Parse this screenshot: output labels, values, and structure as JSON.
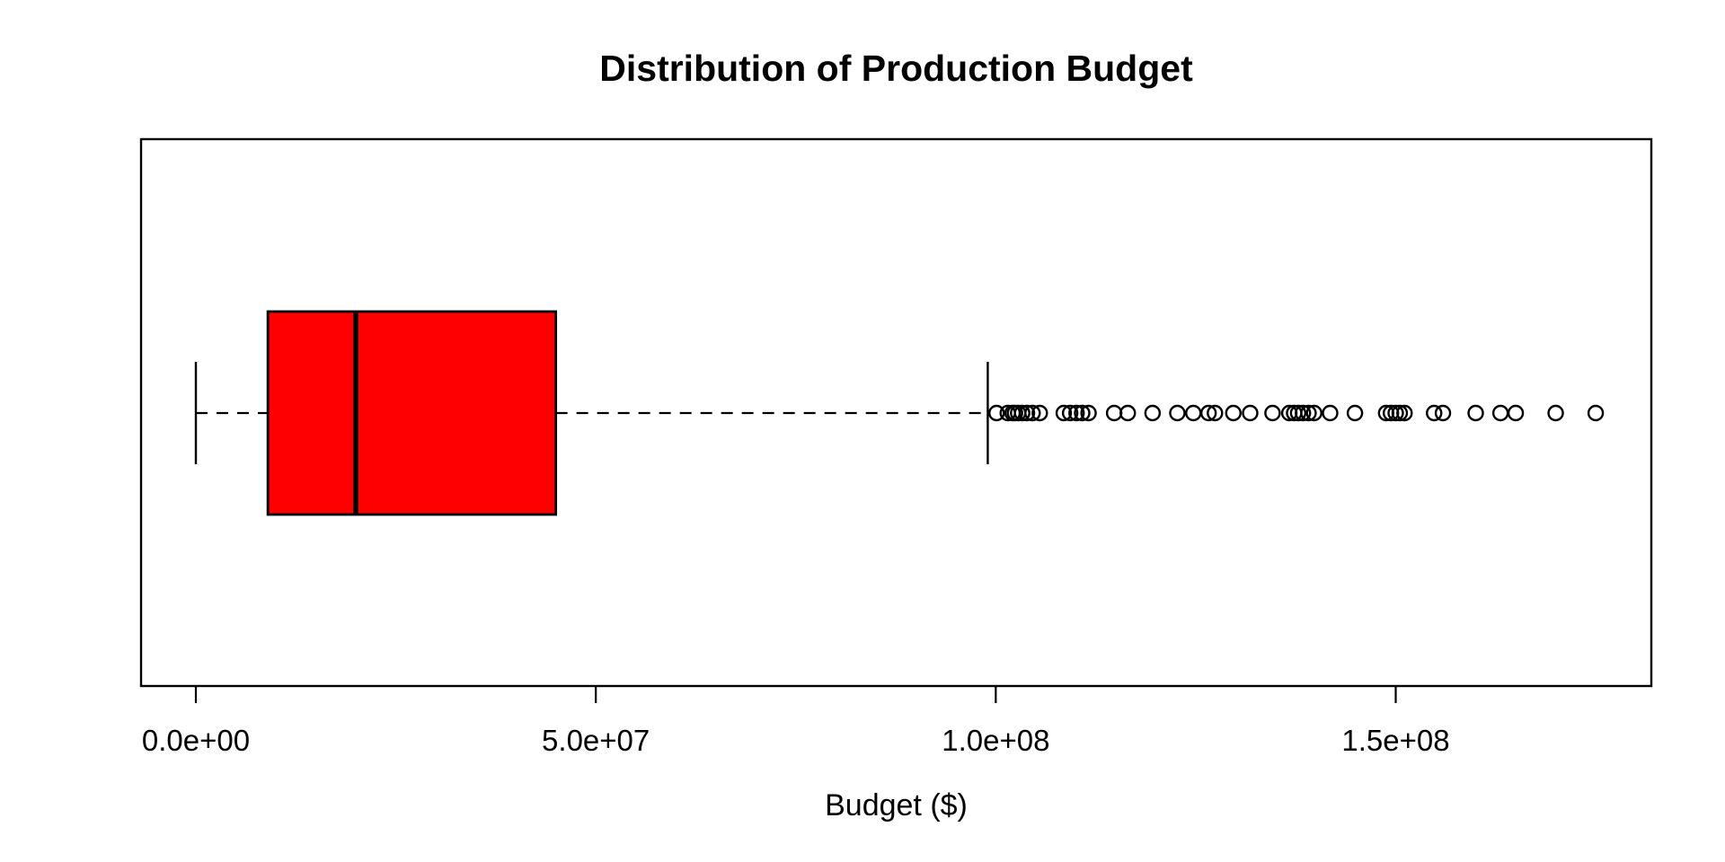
{
  "chart_data": {
    "type": "boxplot",
    "orientation": "horizontal",
    "title": "Distribution of Production Budget",
    "xlabel": "Budget ($)",
    "grid": false,
    "legend": false,
    "colors": {
      "box_fill": "#FF0000",
      "line": "#000000",
      "background": "#FFFFFF"
    },
    "x_axis": {
      "ticks": [
        {
          "value": 0,
          "label": "0.0e+00"
        },
        {
          "value": 50000000,
          "label": "5.0e+07"
        },
        {
          "value": 100000000,
          "label": "1.0e+08"
        },
        {
          "value": 150000000,
          "label": "1.5e+08"
        }
      ],
      "range_dollars": [
        -6900000,
        182000000
      ]
    },
    "stats": {
      "whisker_low": 0,
      "q1": 9000000,
      "median": 20000000,
      "q3": 45000000,
      "whisker_high": 99000000
    },
    "outliers_dollars": [
      100100000,
      101500000,
      102100000,
      102400000,
      102800000,
      103300000,
      103900000,
      104600000,
      105500000,
      108500000,
      109300000,
      110100000,
      110800000,
      111600000,
      114800000,
      116500000,
      119600000,
      122700000,
      124700000,
      126600000,
      127400000,
      129700000,
      131800000,
      134600000,
      136700000,
      137300000,
      137800000,
      138400000,
      139100000,
      139800000,
      141800000,
      144900000,
      148800000,
      149400000,
      150000000,
      150500000,
      151100000,
      154800000,
      155900000,
      160000000,
      163100000,
      165000000,
      170000000,
      175000000
    ]
  }
}
